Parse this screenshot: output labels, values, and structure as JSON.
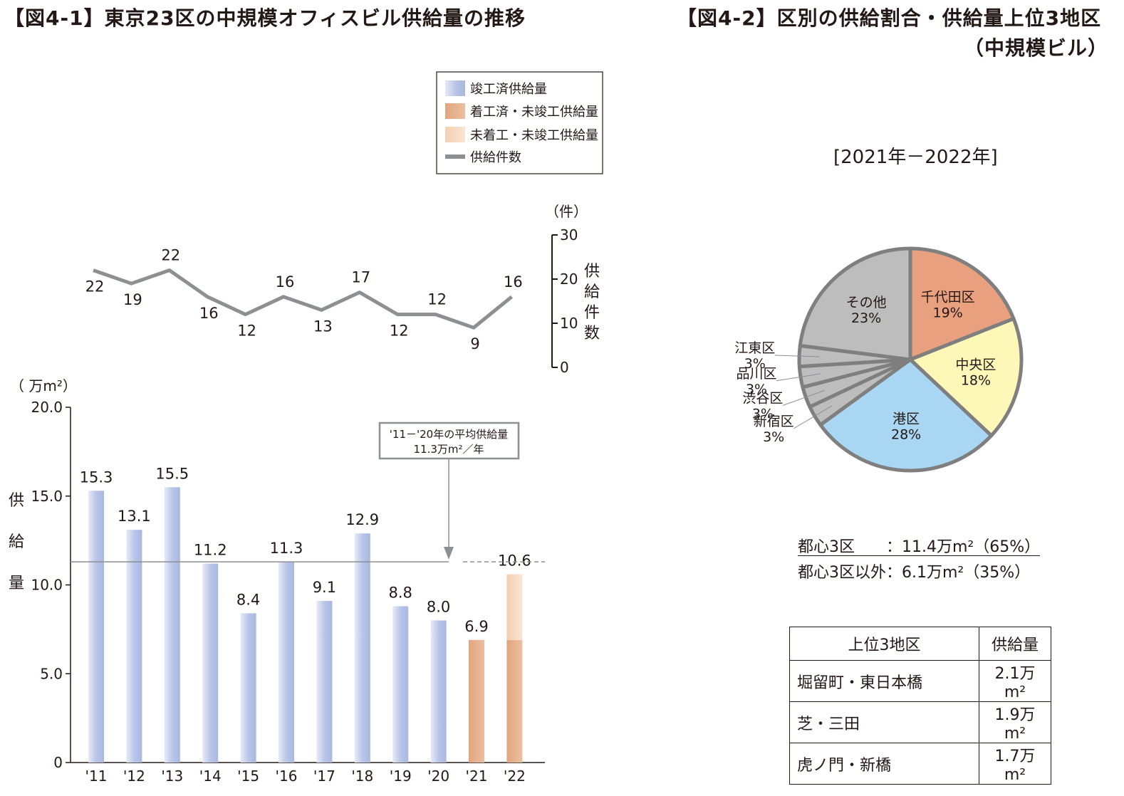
{
  "titles": {
    "fig1": "【図4-1】東京23区の中規模オフィスビル供給量の推移",
    "fig2_line1": "【図4-2】区別の供給割合・供給量上位3地区",
    "fig2_line2": "（中規模ビル）"
  },
  "legend": {
    "completed": "竣工済供給量",
    "under_construction": "着工済・未竣工供給量",
    "not_started": "未着工・未竣工供給量",
    "count": "供給件数"
  },
  "colors": {
    "completed": "#b7c4e6",
    "under_construction": "#e6ad86",
    "not_started": "#f5d4b7",
    "count_line": "#8e8f93",
    "pie_chiyoda": "#e8a07f",
    "pie_chuo": "#fdf8b8",
    "pie_minato": "#a9d6f2",
    "pie_other": "#bdbdbd",
    "pie_stroke": "#7f7f7f"
  },
  "chart_data": [
    {
      "type": "bar",
      "title": "東京23区の中規模オフィスビル供給量の推移",
      "categories": [
        "'11",
        "'12",
        "'13",
        "'14",
        "'15",
        "'16",
        "'17",
        "'18",
        "'19",
        "'20",
        "'21",
        "'22"
      ],
      "series": [
        {
          "name": "竣工済供給量",
          "values": [
            15.3,
            13.1,
            15.5,
            11.2,
            8.4,
            11.3,
            9.1,
            12.9,
            8.8,
            8.0,
            0,
            0
          ]
        },
        {
          "name": "着工済・未竣工供給量",
          "values": [
            0,
            0,
            0,
            0,
            0,
            0,
            0,
            0,
            0,
            0,
            6.9,
            6.9
          ]
        },
        {
          "name": "未着工・未竣工供給量",
          "values": [
            0,
            0,
            0,
            0,
            0,
            0,
            0,
            0,
            0,
            0,
            0,
            3.7
          ]
        }
      ],
      "totals": [
        "15.3",
        "13.1",
        "15.5",
        "11.2",
        "8.4",
        "11.3",
        "9.1",
        "12.9",
        "8.8",
        "8.0",
        "6.9",
        "10.6"
      ],
      "ylabel": "供給量",
      "yunit": "（ 万m²）",
      "ylim": [
        0,
        20
      ],
      "yticks": [
        "0",
        "5.0",
        "10.0",
        "15.0",
        "20.0"
      ],
      "average": {
        "value": 11.3,
        "label_line1": "'11－'20年の平均供給量",
        "label_line2": "11.3万m²／年"
      }
    },
    {
      "type": "line",
      "name": "供給件数",
      "categories": [
        "'11",
        "'12",
        "'13",
        "'14",
        "'15",
        "'16",
        "'17",
        "'18",
        "'19",
        "'20",
        "'21",
        "'22"
      ],
      "values": [
        22,
        19,
        22,
        16,
        12,
        16,
        13,
        17,
        12,
        12,
        9,
        16
      ],
      "ylabel": "供給件数",
      "yunit": "（件）",
      "ylim": [
        0,
        30
      ],
      "yticks": [
        "0",
        "10",
        "20",
        "30"
      ]
    },
    {
      "type": "pie",
      "title": "区別の供給割合",
      "period": "[2021年－2022年]",
      "slices": [
        {
          "label": "千代田区",
          "value": 19,
          "pct": "19%"
        },
        {
          "label": "中央区",
          "value": 18,
          "pct": "18%"
        },
        {
          "label": "港区",
          "value": 28,
          "pct": "28%"
        },
        {
          "label": "新宿区",
          "value": 3,
          "pct": "3%"
        },
        {
          "label": "渋谷区",
          "value": 3,
          "pct": "3%"
        },
        {
          "label": "品川区",
          "value": 3,
          "pct": "3%"
        },
        {
          "label": "江東区",
          "value": 3,
          "pct": "3%"
        },
        {
          "label": "その他",
          "value": 23,
          "pct": "23%"
        }
      ]
    }
  ],
  "summary": {
    "line1": "都心3区　　：11.4万m²（65%）",
    "line2": "都心3区以外：6.1万m²（35%）"
  },
  "top3": {
    "header_area": "上位3地区",
    "header_value": "供給量",
    "rows": [
      {
        "area": "堀留町・東日本橋",
        "value": "2.1万m²"
      },
      {
        "area": "芝・三田",
        "value": "1.9万m²"
      },
      {
        "area": "虎ノ門・新橋",
        "value": "1.7万m²"
      }
    ]
  }
}
